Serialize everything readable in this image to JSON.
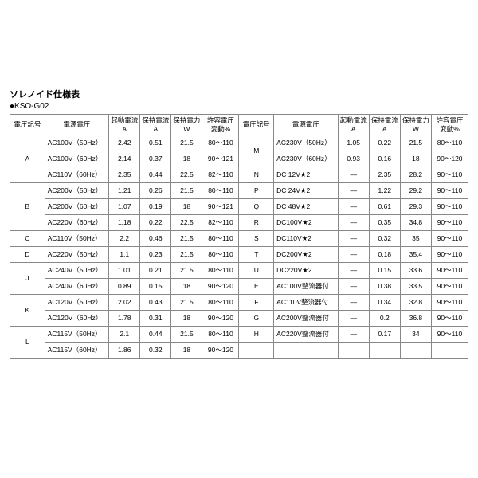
{
  "title": "ソレノイド仕様表",
  "subtitle": "●KSO-G02",
  "headers": {
    "code": "電圧記号",
    "supply": "電源電圧",
    "start_a_1": "起動電流",
    "start_a_2": "A",
    "hold_a_1": "保持電流",
    "hold_a_2": "A",
    "hold_w_1": "保持電力",
    "hold_w_2": "W",
    "var_1": "許容電圧",
    "var_2": "変動%"
  },
  "left_rows": [
    {
      "code": "A",
      "rowspan": 3,
      "supply": "AC100V（50Hz）",
      "start": "2.42",
      "hold": "0.51",
      "watt": "21.5",
      "var": "80～110"
    },
    {
      "supply": "AC100V（60Hz）",
      "start": "2.14",
      "hold": "0.37",
      "watt": "18",
      "var": "90～121"
    },
    {
      "supply": "AC110V（60Hz）",
      "start": "2.35",
      "hold": "0.44",
      "watt": "22.5",
      "var": "82～110"
    },
    {
      "code": "B",
      "rowspan": 3,
      "supply": "AC200V（50Hz）",
      "start": "1.21",
      "hold": "0.26",
      "watt": "21.5",
      "var": "80～110"
    },
    {
      "supply": "AC200V（60Hz）",
      "start": "1.07",
      "hold": "0.19",
      "watt": "18",
      "var": "90～121"
    },
    {
      "supply": "AC220V（60Hz）",
      "start": "1.18",
      "hold": "0.22",
      "watt": "22.5",
      "var": "82～110"
    },
    {
      "code": "C",
      "rowspan": 1,
      "supply": "AC110V（50Hz）",
      "start": "2.2",
      "hold": "0.46",
      "watt": "21.5",
      "var": "80～110"
    },
    {
      "code": "D",
      "rowspan": 1,
      "supply": "AC220V（50Hz）",
      "start": "1.1",
      "hold": "0.23",
      "watt": "21.5",
      "var": "80～110"
    },
    {
      "code": "J",
      "rowspan": 2,
      "supply": "AC240V（50Hz）",
      "start": "1.01",
      "hold": "0.21",
      "watt": "21.5",
      "var": "80～110"
    },
    {
      "supply": "AC240V（60Hz）",
      "start": "0.89",
      "hold": "0.15",
      "watt": "18",
      "var": "90～120"
    },
    {
      "code": "K",
      "rowspan": 2,
      "supply": "AC120V（50Hz）",
      "start": "2.02",
      "hold": "0.43",
      "watt": "21.5",
      "var": "80～110"
    },
    {
      "supply": "AC120V（60Hz）",
      "start": "1.78",
      "hold": "0.31",
      "watt": "18",
      "var": "90～120"
    },
    {
      "code": "L",
      "rowspan": 2,
      "supply": "AC115V（50Hz）",
      "start": "2.1",
      "hold": "0.44",
      "watt": "21.5",
      "var": "80～110"
    },
    {
      "supply": "AC115V（60Hz）",
      "start": "1.86",
      "hold": "0.32",
      "watt": "18",
      "var": "90～120"
    }
  ],
  "right_rows": [
    {
      "code": "M",
      "rowspan": 2,
      "supply": "AC230V（50Hz）",
      "start": "1.05",
      "hold": "0.22",
      "watt": "21.5",
      "var": "80～110"
    },
    {
      "supply": "AC230V（60Hz）",
      "start": "0.93",
      "hold": "0.16",
      "watt": "18",
      "var": "90～120"
    },
    {
      "code": "N",
      "rowspan": 1,
      "supply": "DC 12V★2",
      "start": "—",
      "hold": "2.35",
      "watt": "28.2",
      "var": "90～110"
    },
    {
      "code": "P",
      "rowspan": 1,
      "supply": "DC 24V★2",
      "start": "—",
      "hold": "1.22",
      "watt": "29.2",
      "var": "90～110"
    },
    {
      "code": "Q",
      "rowspan": 1,
      "supply": "DC 48V★2",
      "start": "—",
      "hold": "0.61",
      "watt": "29.3",
      "var": "90～110"
    },
    {
      "code": "R",
      "rowspan": 1,
      "supply": "DC100V★2",
      "start": "—",
      "hold": "0.35",
      "watt": "34.8",
      "var": "90～110"
    },
    {
      "code": "S",
      "rowspan": 1,
      "supply": "DC110V★2",
      "start": "—",
      "hold": "0.32",
      "watt": "35",
      "var": "90～110"
    },
    {
      "code": "T",
      "rowspan": 1,
      "supply": "DC200V★2",
      "start": "—",
      "hold": "0.18",
      "watt": "35.4",
      "var": "90～110"
    },
    {
      "code": "U",
      "rowspan": 1,
      "supply": "DC220V★2",
      "start": "—",
      "hold": "0.15",
      "watt": "33.6",
      "var": "90～110"
    },
    {
      "code": "E",
      "rowspan": 1,
      "supply": "AC100V整流器付",
      "start": "—",
      "hold": "0.38",
      "watt": "33.5",
      "var": "90～110"
    },
    {
      "code": "F",
      "rowspan": 1,
      "supply": "AC110V整流器付",
      "start": "—",
      "hold": "0.34",
      "watt": "32.8",
      "var": "90～110"
    },
    {
      "code": "G",
      "rowspan": 1,
      "supply": "AC200V整流器付",
      "start": "—",
      "hold": "0.2",
      "watt": "36.8",
      "var": "90～110"
    },
    {
      "code": "H",
      "rowspan": 1,
      "supply": "AC220V整流器付",
      "start": "—",
      "hold": "0.17",
      "watt": "34",
      "var": "90～110"
    }
  ]
}
